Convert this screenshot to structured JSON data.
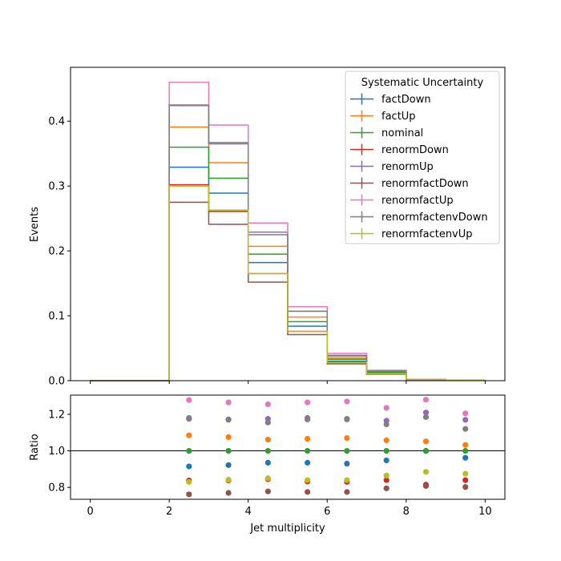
{
  "chart_data": {
    "type": "step",
    "bin_edges": [
      0,
      1,
      2,
      3,
      4,
      5,
      6,
      7,
      8,
      9,
      10
    ],
    "x_ticks": [
      "0",
      "2",
      "4",
      "6",
      "8",
      "10"
    ],
    "x_tick_values": [
      0,
      2,
      4,
      6,
      8,
      10
    ],
    "xlabel": "Jet multiplicity",
    "xlim": [
      -0.5,
      10.5
    ],
    "top_panel": {
      "ylabel": "Events",
      "ylim": [
        0,
        0.483
      ],
      "y_ticks": [
        "0.0",
        "0.1",
        "0.2",
        "0.3",
        "0.4"
      ],
      "y_tick_values": [
        0,
        0.1,
        0.2,
        0.3,
        0.4
      ]
    },
    "bottom_panel": {
      "ylabel": "Ratio",
      "ylim": [
        0.735,
        1.305
      ],
      "y_ticks": [
        "0.8",
        "1.0",
        "1.2"
      ],
      "y_tick_values": [
        0.8,
        1.0,
        1.2
      ],
      "reference_line": 1.0,
      "ratio_bin_centers": [
        2.5,
        3.5,
        4.5,
        5.5,
        6.5,
        7.5,
        8.5,
        9.5
      ]
    },
    "legend": {
      "title": "Systematic Uncertainty",
      "position": "top-right"
    },
    "series": [
      {
        "name": "factDown",
        "color": "#1f77b4",
        "values": [
          0,
          0,
          0.329,
          0.289,
          0.182,
          0.084,
          0.03,
          0.012,
          0.002,
          0.001
        ],
        "ratio": [
          0.915,
          0.922,
          0.935,
          0.935,
          0.93,
          0.948,
          1.0,
          0.962
        ]
      },
      {
        "name": "factUp",
        "color": "#ff7f0e",
        "values": [
          0,
          0,
          0.391,
          0.336,
          0.207,
          0.098,
          0.035,
          0.014,
          0.002,
          0.001
        ],
        "ratio": [
          1.085,
          1.075,
          1.062,
          1.066,
          1.07,
          1.058,
          1.052,
          1.032
        ]
      },
      {
        "name": "nominal",
        "color": "#2ca02c",
        "values": [
          0,
          0,
          0.36,
          0.312,
          0.195,
          0.091,
          0.033,
          0.013,
          0.002,
          0.001
        ],
        "ratio": [
          1.0,
          1.0,
          1.0,
          1.0,
          1.0,
          1.0,
          1.0,
          1.0
        ]
      },
      {
        "name": "renormDown",
        "color": "#d62728",
        "values": [
          0,
          0,
          0.302,
          0.261,
          0.165,
          0.076,
          0.028,
          0.011,
          0.002,
          0.001
        ],
        "ratio": [
          0.838,
          0.838,
          0.845,
          0.832,
          0.83,
          0.84,
          0.815,
          0.84
        ]
      },
      {
        "name": "renormUp",
        "color": "#9467bd",
        "values": [
          0,
          0,
          0.424,
          0.365,
          0.229,
          0.107,
          0.039,
          0.015,
          0.002,
          0.001
        ],
        "ratio": [
          1.175,
          1.172,
          1.175,
          1.172,
          1.172,
          1.165,
          1.21,
          1.17
        ]
      },
      {
        "name": "renormfactDown",
        "color": "#8c564b",
        "values": [
          0,
          0,
          0.275,
          0.241,
          0.152,
          0.071,
          0.026,
          0.01,
          0.002,
          0.001
        ],
        "ratio": [
          0.762,
          0.77,
          0.778,
          0.775,
          0.775,
          0.795,
          0.808,
          0.802
        ]
      },
      {
        "name": "renormfactUp",
        "color": "#e377c2",
        "values": [
          0,
          0,
          0.46,
          0.394,
          0.243,
          0.114,
          0.042,
          0.016,
          0.002,
          0.001
        ],
        "ratio": [
          1.278,
          1.265,
          1.255,
          1.265,
          1.27,
          1.235,
          1.28,
          1.205
        ]
      },
      {
        "name": "renormfactenvDown",
        "color": "#7f7f7f",
        "values": [
          0,
          0,
          0.425,
          0.367,
          0.225,
          0.107,
          0.038,
          0.015,
          0.002,
          0.001
        ],
        "ratio": [
          1.18,
          1.17,
          1.155,
          1.18,
          1.175,
          1.145,
          1.185,
          1.12
        ]
      },
      {
        "name": "renormfactenvUp",
        "color": "#bcbd22",
        "values": [
          0,
          0,
          0.3,
          0.263,
          0.165,
          0.076,
          0.028,
          0.011,
          0.002,
          0.001
        ],
        "ratio": [
          0.83,
          0.842,
          0.85,
          0.84,
          0.84,
          0.865,
          0.885,
          0.875
        ]
      }
    ]
  }
}
